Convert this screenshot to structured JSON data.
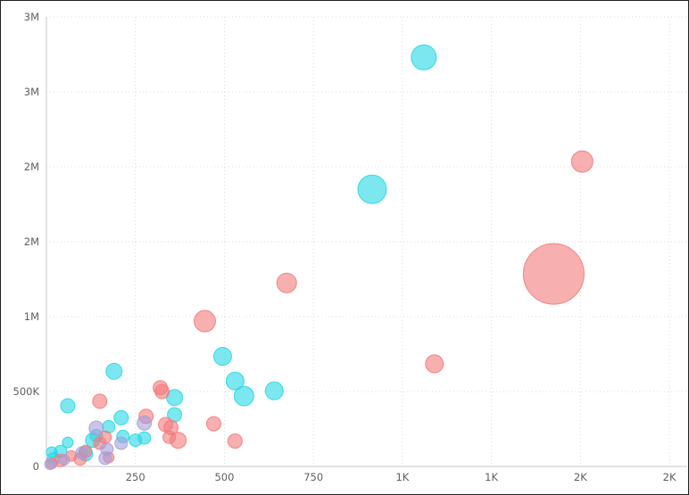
{
  "chart_data": {
    "type": "scatter",
    "title": "",
    "xlabel": "",
    "ylabel": "",
    "grid": true,
    "x_axis": {
      "min": 0,
      "max": 1800,
      "ticks": [
        {
          "value": 250,
          "label": "250"
        },
        {
          "value": 500,
          "label": "500"
        },
        {
          "value": 750,
          "label": "750"
        },
        {
          "value": 1000,
          "label": "1K"
        },
        {
          "value": 1250,
          "label": "1K"
        },
        {
          "value": 1500,
          "label": "2K"
        },
        {
          "value": 1750,
          "label": "2K"
        }
      ]
    },
    "y_axis": {
      "min": 0,
      "max": 3000000,
      "ticks": [
        {
          "value": 0,
          "label": "0"
        },
        {
          "value": 500000,
          "label": "500K"
        },
        {
          "value": 1000000,
          "label": "1M"
        },
        {
          "value": 1500000,
          "label": "2M"
        },
        {
          "value": 2000000,
          "label": "2M"
        },
        {
          "value": 2500000,
          "label": "3M"
        },
        {
          "value": 3000000,
          "label": "3M"
        }
      ]
    },
    "colors": {
      "cyan": "#26d7e6",
      "salmon": "#f47a7a",
      "lavender": "#a59ddb"
    },
    "series": [
      {
        "color": "cyan",
        "points": [
          {
            "x": 1060,
            "y": 2730000,
            "size": 14
          },
          {
            "x": 915,
            "y": 1850000,
            "size": 16
          },
          {
            "x": 495,
            "y": 735000,
            "size": 10
          },
          {
            "x": 530,
            "y": 570000,
            "size": 10
          },
          {
            "x": 555,
            "y": 470000,
            "size": 11
          },
          {
            "x": 640,
            "y": 505000,
            "size": 10
          },
          {
            "x": 360,
            "y": 460000,
            "size": 9
          },
          {
            "x": 360,
            "y": 345000,
            "size": 8
          },
          {
            "x": 190,
            "y": 635000,
            "size": 9
          },
          {
            "x": 210,
            "y": 325000,
            "size": 8
          },
          {
            "x": 215,
            "y": 200000,
            "size": 7
          },
          {
            "x": 250,
            "y": 175000,
            "size": 7
          },
          {
            "x": 275,
            "y": 190000,
            "size": 7
          },
          {
            "x": 175,
            "y": 265000,
            "size": 7
          },
          {
            "x": 140,
            "y": 205000,
            "size": 7
          },
          {
            "x": 130,
            "y": 175000,
            "size": 8
          },
          {
            "x": 110,
            "y": 85000,
            "size": 8
          },
          {
            "x": 60,
            "y": 405000,
            "size": 8
          },
          {
            "x": 60,
            "y": 160000,
            "size": 6
          },
          {
            "x": 40,
            "y": 100000,
            "size": 7
          },
          {
            "x": 15,
            "y": 95000,
            "size": 6
          },
          {
            "x": 20,
            "y": 50000,
            "size": 7
          }
        ]
      },
      {
        "color": "salmon",
        "points": [
          {
            "x": 1425,
            "y": 1285000,
            "size": 34
          },
          {
            "x": 1505,
            "y": 2035000,
            "size": 12
          },
          {
            "x": 1090,
            "y": 685000,
            "size": 10
          },
          {
            "x": 675,
            "y": 1225000,
            "size": 11
          },
          {
            "x": 445,
            "y": 970000,
            "size": 12
          },
          {
            "x": 470,
            "y": 285000,
            "size": 8
          },
          {
            "x": 530,
            "y": 170000,
            "size": 8
          },
          {
            "x": 320,
            "y": 525000,
            "size": 8
          },
          {
            "x": 325,
            "y": 500000,
            "size": 8
          },
          {
            "x": 280,
            "y": 335000,
            "size": 8
          },
          {
            "x": 335,
            "y": 280000,
            "size": 8
          },
          {
            "x": 350,
            "y": 260000,
            "size": 8
          },
          {
            "x": 345,
            "y": 195000,
            "size": 7
          },
          {
            "x": 370,
            "y": 175000,
            "size": 9
          },
          {
            "x": 150,
            "y": 435000,
            "size": 8
          },
          {
            "x": 165,
            "y": 195000,
            "size": 7
          },
          {
            "x": 150,
            "y": 155000,
            "size": 7
          },
          {
            "x": 110,
            "y": 100000,
            "size": 7
          },
          {
            "x": 95,
            "y": 50000,
            "size": 7
          },
          {
            "x": 175,
            "y": 60000,
            "size": 6
          },
          {
            "x": 70,
            "y": 70000,
            "size": 6
          },
          {
            "x": 40,
            "y": 40000,
            "size": 7
          },
          {
            "x": 15,
            "y": 20000,
            "size": 6
          }
        ]
      },
      {
        "color": "lavender",
        "points": [
          {
            "x": 275,
            "y": 290000,
            "size": 8
          },
          {
            "x": 210,
            "y": 155000,
            "size": 7
          },
          {
            "x": 140,
            "y": 255000,
            "size": 8
          },
          {
            "x": 170,
            "y": 115000,
            "size": 7
          },
          {
            "x": 165,
            "y": 55000,
            "size": 7
          },
          {
            "x": 100,
            "y": 90000,
            "size": 7
          },
          {
            "x": 50,
            "y": 45000,
            "size": 6
          },
          {
            "x": 10,
            "y": 15000,
            "size": 6
          }
        ]
      }
    ]
  }
}
